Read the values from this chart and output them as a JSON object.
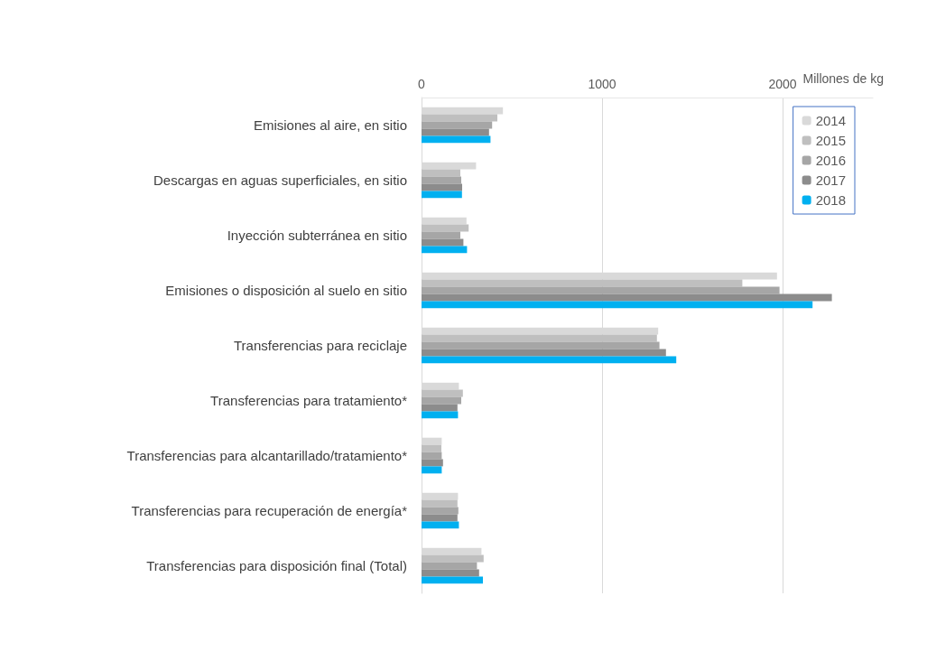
{
  "chart_data": {
    "type": "bar",
    "orientation": "horizontal",
    "xlabel": "Millones de kg",
    "categories": [
      "Emisiones al aire, en sitio",
      "Descargas en aguas superficiales, en sitio",
      "Inyección subterránea en sitio",
      "Emisiones o disposición al suelo en sitio",
      "Transferencias para reciclaje",
      "Transferencias para tratamiento*",
      "Transferencias para alcantarillado/tratamiento*",
      "Transferencias para recuperación de energía*",
      "Transferencias para disposición final (Total)"
    ],
    "series": [
      {
        "name": "2014",
        "color": "#d9d9d9",
        "values": [
          451,
          302,
          249,
          1969,
          1311,
          207,
          112,
          202,
          332
        ]
      },
      {
        "name": "2015",
        "color": "#bfbfbf",
        "values": [
          420,
          215,
          261,
          1777,
          1304,
          229,
          110,
          199,
          344
        ]
      },
      {
        "name": "2016",
        "color": "#a6a6a6",
        "values": [
          391,
          220,
          215,
          1983,
          1318,
          220,
          112,
          204,
          307
        ]
      },
      {
        "name": "2017",
        "color": "#8c8c8c",
        "values": [
          374,
          225,
          232,
          2273,
          1354,
          199,
          119,
          199,
          319
        ]
      },
      {
        "name": "2018",
        "color": "#00b0f0",
        "values": [
          382,
          224,
          252,
          2166,
          1411,
          202,
          112,
          207,
          340
        ]
      }
    ],
    "xlim": [
      0,
      2500
    ],
    "xticks": [
      0,
      1000,
      2000
    ],
    "grid": "x",
    "legend": "top right"
  }
}
